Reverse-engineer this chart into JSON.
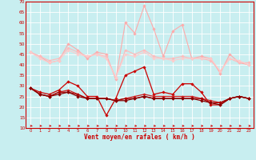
{
  "background_color": "#c8eef0",
  "grid_color": "#ffffff",
  "xlabel": "Vent moyen/en rafales ( km/h )",
  "xlabel_color": "#cc0000",
  "tick_color": "#cc0000",
  "arrow_color": "#cc0000",
  "ylim": [
    10,
    70
  ],
  "xlim": [
    -0.5,
    23.5
  ],
  "yticks": [
    10,
    15,
    20,
    25,
    30,
    35,
    40,
    45,
    50,
    55,
    60,
    65,
    70
  ],
  "xticks": [
    0,
    1,
    2,
    3,
    4,
    5,
    6,
    7,
    8,
    9,
    10,
    11,
    12,
    13,
    14,
    15,
    16,
    17,
    18,
    19,
    20,
    21,
    22,
    23
  ],
  "series": [
    {
      "label": "rafales_light1",
      "color": "#ffaaaa",
      "linewidth": 0.8,
      "marker": "D",
      "markersize": 1.8,
      "values": [
        46,
        44,
        41,
        42,
        50,
        47,
        43,
        46,
        45,
        33,
        60,
        55,
        68,
        57,
        44,
        56,
        59,
        43,
        44,
        43,
        36,
        45,
        41,
        40
      ]
    },
    {
      "label": "rafales_light2",
      "color": "#ffbbbb",
      "linewidth": 0.8,
      "marker": "D",
      "markersize": 1.8,
      "values": [
        46,
        44,
        42,
        43,
        48,
        46,
        44,
        45,
        44,
        34,
        47,
        45,
        47,
        44,
        43,
        43,
        44,
        43,
        43,
        42,
        37,
        43,
        41,
        41
      ]
    },
    {
      "label": "moy_light",
      "color": "#ffcccc",
      "linewidth": 0.8,
      "marker": "D",
      "markersize": 1.8,
      "values": [
        46,
        43,
        41,
        42,
        47,
        45,
        44,
        45,
        43,
        34,
        45,
        44,
        46,
        43,
        43,
        42,
        43,
        43,
        43,
        43,
        37,
        43,
        42,
        40
      ]
    },
    {
      "label": "moy_dark1",
      "color": "#cc0000",
      "linewidth": 0.9,
      "marker": "D",
      "markersize": 1.8,
      "values": [
        29,
        27,
        26,
        28,
        32,
        30,
        25,
        25,
        16,
        24,
        35,
        37,
        39,
        26,
        27,
        26,
        31,
        31,
        27,
        21,
        21,
        24,
        25,
        24
      ]
    },
    {
      "label": "moy_dark2",
      "color": "#cc2222",
      "linewidth": 0.9,
      "marker": "D",
      "markersize": 1.8,
      "values": [
        29,
        26,
        25,
        27,
        28,
        26,
        24,
        24,
        24,
        23,
        24,
        25,
        26,
        25,
        25,
        25,
        25,
        25,
        24,
        23,
        22,
        24,
        25,
        24
      ]
    },
    {
      "label": "moy_dark3",
      "color": "#aa0000",
      "linewidth": 0.9,
      "marker": "D",
      "markersize": 1.8,
      "values": [
        29,
        26,
        25,
        27,
        27,
        26,
        24,
        24,
        24,
        23,
        24,
        24,
        25,
        24,
        24,
        24,
        24,
        24,
        24,
        22,
        22,
        24,
        25,
        24
      ]
    },
    {
      "label": "moy_dark4",
      "color": "#880000",
      "linewidth": 0.9,
      "marker": "D",
      "markersize": 1.8,
      "values": [
        29,
        26,
        25,
        26,
        27,
        25,
        24,
        24,
        24,
        23,
        23,
        24,
        25,
        24,
        24,
        24,
        24,
        24,
        23,
        22,
        21,
        24,
        25,
        24
      ]
    }
  ]
}
